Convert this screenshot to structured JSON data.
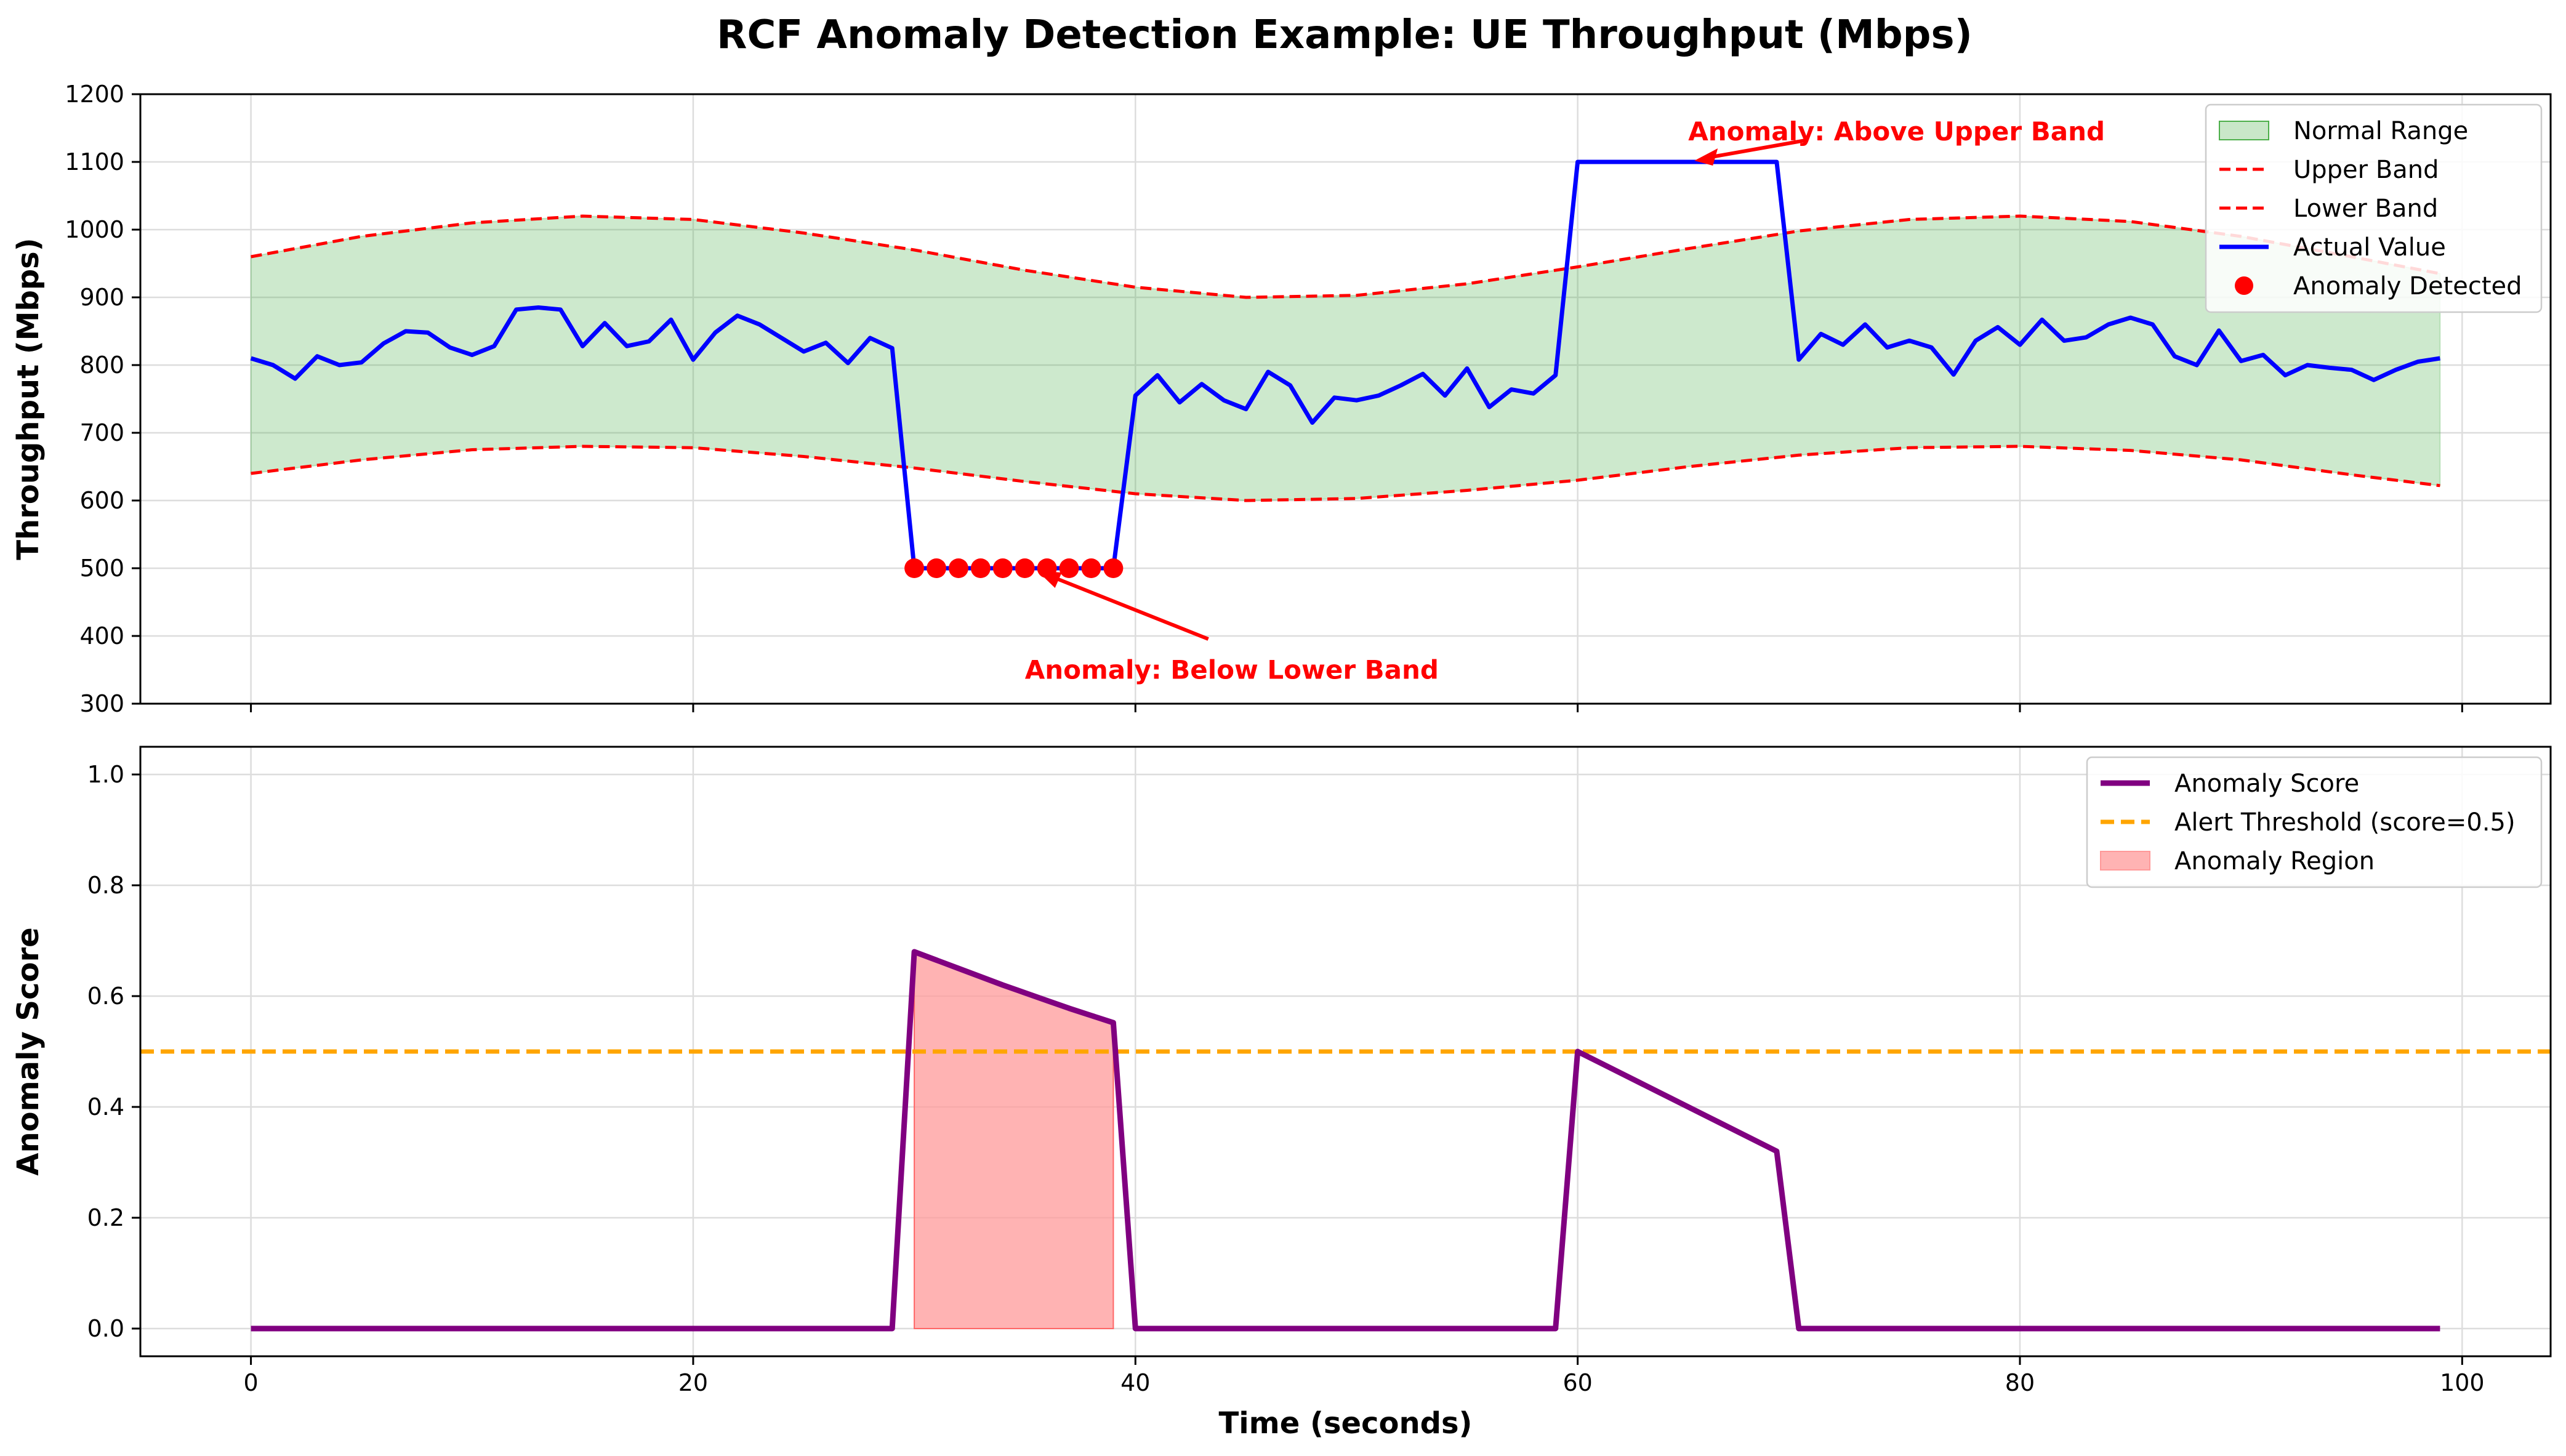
{
  "figure_title": "RCF Anomaly Detection Example: UE Throughput (Mbps)",
  "chart_data": [
    {
      "type": "line",
      "title": "",
      "xlabel": "",
      "ylabel": "Throughput (Mbps)",
      "xlim": [
        -5,
        104
      ],
      "ylim": [
        300,
        1200
      ],
      "xticks": [
        0,
        20,
        40,
        60,
        80,
        100
      ],
      "xtick_labels_shown": false,
      "yticks": [
        300,
        400,
        500,
        600,
        700,
        800,
        900,
        1000,
        1100,
        1200
      ],
      "grid": true,
      "legend_position": "top-right",
      "legend": [
        "Normal Range",
        "Upper Band",
        "Lower Band",
        "Actual Value",
        "Anomaly Detected"
      ],
      "series": [
        {
          "name": "Actual Value",
          "color": "#0000ff",
          "x": [
            0,
            1,
            2,
            3,
            4,
            5,
            6,
            7,
            8,
            9,
            10,
            11,
            12,
            13,
            14,
            15,
            16,
            17,
            18,
            19,
            20,
            21,
            22,
            23,
            24,
            25,
            26,
            27,
            28,
            29,
            30,
            31,
            32,
            33,
            34,
            35,
            36,
            37,
            38,
            39,
            40,
            41,
            42,
            43,
            44,
            45,
            46,
            47,
            48,
            49,
            50,
            51,
            52,
            53,
            54,
            55,
            56,
            57,
            58,
            59,
            60,
            61,
            62,
            63,
            64,
            65,
            66,
            67,
            68,
            69,
            70,
            71,
            72,
            73,
            74,
            75,
            76,
            77,
            78,
            79,
            80,
            81,
            82,
            83,
            84,
            85,
            86,
            87,
            88,
            89,
            90,
            91,
            92,
            93,
            94,
            95,
            96,
            97,
            98,
            99
          ],
          "y": [
            810,
            800,
            780,
            813,
            800,
            804,
            832,
            850,
            848,
            826,
            815,
            828,
            882,
            885,
            882,
            828,
            862,
            828,
            835,
            867,
            808,
            848,
            873,
            860,
            840,
            820,
            833,
            803,
            840,
            825,
            500,
            500,
            500,
            500,
            500,
            500,
            500,
            500,
            500,
            500,
            755,
            785,
            745,
            772,
            748,
            735,
            790,
            770,
            715,
            752,
            748,
            755,
            770,
            787,
            755,
            795,
            738,
            764,
            758,
            785,
            1100,
            1100,
            1100,
            1100,
            1100,
            1100,
            1100,
            1100,
            1100,
            1100,
            808,
            846,
            830,
            860,
            826,
            836,
            826,
            786,
            836,
            856,
            830,
            867,
            836,
            841,
            860,
            870,
            860,
            813,
            800,
            851,
            806,
            815,
            785,
            800,
            796,
            793,
            778,
            793,
            805,
            810
          ]
        },
        {
          "name": "Upper Band",
          "color": "#ff0000",
          "x": [
            0,
            5,
            10,
            15,
            20,
            25,
            30,
            35,
            40,
            45,
            50,
            55,
            60,
            65,
            70,
            75,
            80,
            85,
            90,
            95,
            99
          ],
          "y": [
            960,
            990,
            1010,
            1020,
            1015,
            995,
            970,
            940,
            915,
            900,
            903,
            920,
            945,
            972,
            998,
            1015,
            1020,
            1012,
            990,
            960,
            935
          ]
        },
        {
          "name": "Lower Band",
          "color": "#ff0000",
          "x": [
            0,
            5,
            10,
            15,
            20,
            25,
            30,
            35,
            40,
            45,
            50,
            55,
            60,
            65,
            70,
            75,
            80,
            85,
            90,
            95,
            99
          ],
          "y": [
            640,
            660,
            675,
            680,
            678,
            665,
            648,
            628,
            610,
            600,
            603,
            615,
            630,
            650,
            667,
            678,
            680,
            674,
            660,
            638,
            622
          ]
        },
        {
          "name": "Anomaly Detected",
          "color": "#ff0000",
          "x": [
            30,
            31,
            32,
            33,
            34,
            35,
            36,
            37,
            38,
            39
          ],
          "y": [
            500,
            500,
            500,
            500,
            500,
            500,
            500,
            500,
            500,
            500
          ]
        }
      ],
      "band": {
        "name": "Normal Range",
        "color": "#4daf4a",
        "between": [
          "Lower Band",
          "Upper Band"
        ]
      },
      "annotations": [
        {
          "text": "Anomaly: Above Upper Band",
          "color": "#ff0000",
          "point": [
            65,
            1100
          ],
          "text_pos": [
            65,
            1150
          ]
        },
        {
          "text": "Anomaly: Below Lower Band",
          "color": "#ff0000",
          "point": [
            35.5,
            500
          ],
          "text_pos": [
            35,
            355
          ]
        }
      ]
    },
    {
      "type": "line",
      "title": "",
      "xlabel": "Time (seconds)",
      "ylabel": "Anomaly Score",
      "xlim": [
        -5,
        104
      ],
      "ylim": [
        -0.05,
        1.05
      ],
      "xticks": [
        0,
        20,
        40,
        60,
        80,
        100
      ],
      "yticks": [
        0.0,
        0.2,
        0.4,
        0.6,
        0.8,
        1.0
      ],
      "ytick_labels": [
        "0.0",
        "0.2",
        "0.4",
        "0.6",
        "0.8",
        "1.0"
      ],
      "grid": true,
      "legend_position": "top-right",
      "legend": [
        "Anomaly Score",
        "Alert Threshold (score=0.5)",
        "Anomaly Region"
      ],
      "series": [
        {
          "name": "Anomaly Score",
          "color": "#800080",
          "x": [
            0,
            29,
            30,
            31,
            32,
            33,
            34,
            35,
            36,
            37,
            38,
            39,
            40,
            59,
            60,
            61,
            62,
            63,
            64,
            65,
            66,
            67,
            68,
            69,
            70,
            99
          ],
          "y": [
            0,
            0,
            0.68,
            0.665,
            0.65,
            0.635,
            0.62,
            0.606,
            0.592,
            0.578,
            0.565,
            0.552,
            0,
            0,
            0.5,
            0.48,
            0.46,
            0.44,
            0.42,
            0.4,
            0.38,
            0.36,
            0.34,
            0.32,
            0,
            0
          ]
        }
      ],
      "threshold": {
        "name": "Alert Threshold (score=0.5)",
        "value": 0.5,
        "color": "#ffa500"
      },
      "region": {
        "name": "Anomaly Region",
        "color": "#ff9999",
        "x_start": 30,
        "x_end": 39
      }
    }
  ]
}
